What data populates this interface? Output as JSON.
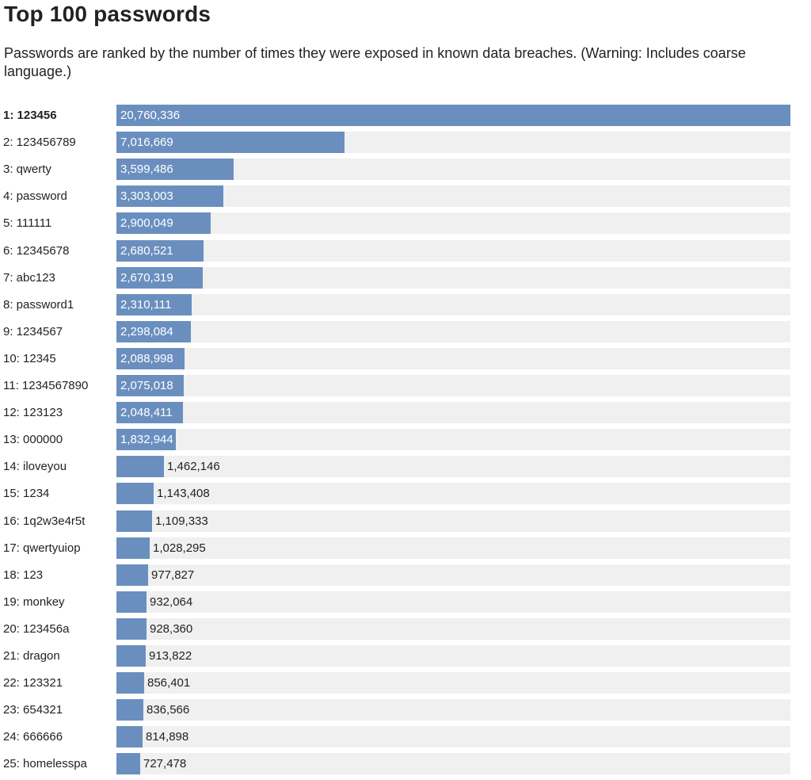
{
  "page": {
    "title": "Top 100 passwords",
    "subtitle": "Passwords are ranked by the number of times they were exposed in known data breaches. (Warning: Includes coarse language.)"
  },
  "colors": {
    "bar": "#6a8fbf",
    "track": "#f0f0f0",
    "text": "#222222",
    "inside_label": "#ffffff"
  },
  "chart_data": {
    "type": "bar",
    "orientation": "horizontal",
    "categories": [
      "1: 123456",
      "2: 123456789",
      "3: qwerty",
      "4: password",
      "5: 111111",
      "6: 12345678",
      "7: abc123",
      "8: password1",
      "9: 1234567",
      "10: 12345",
      "11: 1234567890",
      "12: 123123",
      "13: 000000",
      "14: iloveyou",
      "15: 1234",
      "16: 1q2w3e4r5t",
      "17: qwertyuiop",
      "18: 123",
      "19: monkey",
      "20: 123456a",
      "21: dragon",
      "22: 123321",
      "23: 654321",
      "24: 666666",
      "25: homelesspa"
    ],
    "values": [
      20760336,
      7016669,
      3599486,
      3303003,
      2900049,
      2680521,
      2670319,
      2310111,
      2298084,
      2088998,
      2075018,
      2048411,
      1832944,
      1462146,
      1143408,
      1109333,
      1028295,
      977827,
      932064,
      928360,
      913822,
      856401,
      836566,
      814898,
      727478
    ],
    "value_labels": [
      "20,760,336",
      "7,016,669",
      "3,599,486",
      "3,303,003",
      "2,900,049",
      "2,680,521",
      "2,670,319",
      "2,310,111",
      "2,298,084",
      "2,088,998",
      "2,075,018",
      "2,048,411",
      "1,832,944",
      "1,462,146",
      "1,143,408",
      "1,109,333",
      "1,028,295",
      "977,827",
      "932,064",
      "928,360",
      "913,822",
      "856,401",
      "836,566",
      "814,898",
      "727,478"
    ],
    "highlight_index": 0,
    "xlim": [
      0,
      20760336
    ],
    "title": "",
    "xlabel": "",
    "ylabel": "",
    "grid": false,
    "legend": "none"
  }
}
